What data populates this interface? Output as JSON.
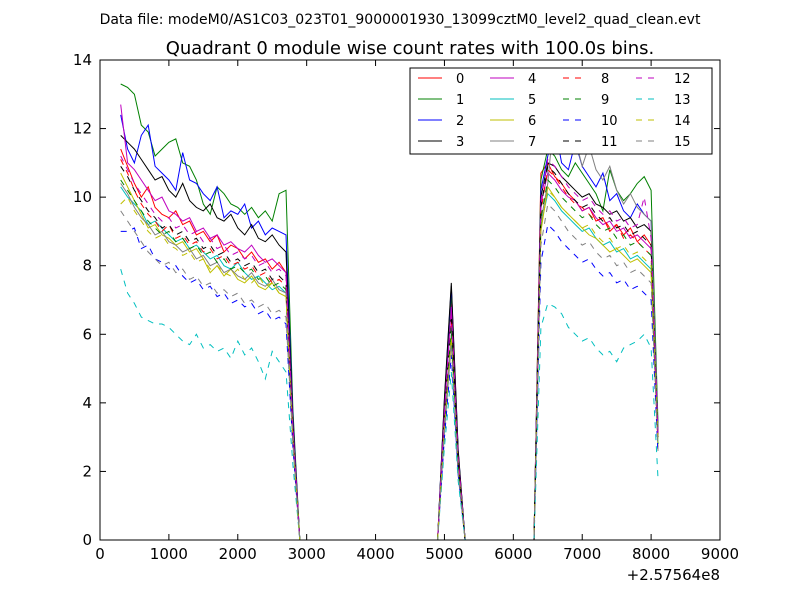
{
  "suptitle": "Data file: modeM0/AS1C03_023T01_9000001930_13099cztM0_level2_quad_clean.evt",
  "chart_data": {
    "type": "line",
    "title": "Quadrant 0 module wise count rates with 100.0s bins.",
    "xlabel": "",
    "ylabel": "",
    "x_offset_label": "+2.57564e8",
    "xlim": [
      0,
      9000
    ],
    "ylim": [
      0,
      14
    ],
    "xticks": [
      0,
      1000,
      2000,
      3000,
      4000,
      5000,
      6000,
      7000,
      8000,
      9000
    ],
    "yticks": [
      0,
      2,
      4,
      6,
      8,
      10,
      12,
      14
    ],
    "legend_position": "top-right",
    "legend_columns": 4,
    "seg1_x": [
      300,
      400,
      500,
      600,
      700,
      800,
      900,
      1000,
      1100,
      1200,
      1300,
      1400,
      1500,
      1600,
      1700,
      1800,
      1900,
      2000,
      2100,
      2200,
      2300,
      2400,
      2500,
      2600,
      2700,
      2800,
      2900
    ],
    "seg2_x": [
      4900,
      5000,
      5100,
      5200,
      5300
    ],
    "seg3_x": [
      6400,
      6500,
      6600,
      6700,
      6800,
      6900,
      7000,
      7100,
      7200,
      7300,
      7400,
      7500,
      7600,
      7700,
      7800,
      7900,
      8000,
      8100
    ],
    "series": [
      {
        "name": "0",
        "color": "#ff0000",
        "dash": false,
        "seg1": [
          11.4,
          10.9,
          10.4,
          10.0,
          10.3,
          9.7,
          9.5,
          9.4,
          9.6,
          9.2,
          9.3,
          8.9,
          9.0,
          8.7,
          8.9,
          8.4,
          8.6,
          8.5,
          8.2,
          8.4,
          8.1,
          8.2,
          7.9,
          8.1,
          7.8,
          3.3,
          0.0
        ],
        "peak": 7.0,
        "seg3": [
          10.7,
          11.0,
          10.6,
          10.4,
          10.1,
          9.9,
          9.6,
          9.7,
          9.3,
          9.4,
          9.0,
          9.2,
          8.9,
          9.1,
          8.7,
          8.9,
          8.6,
          3.0
        ]
      },
      {
        "name": "1",
        "color": "#008000",
        "dash": false,
        "seg1": [
          13.3,
          13.2,
          13.0,
          12.1,
          11.9,
          11.2,
          11.4,
          11.6,
          11.7,
          11.0,
          10.9,
          10.5,
          9.8,
          9.5,
          10.3,
          10.1,
          9.8,
          9.7,
          9.5,
          9.7,
          9.4,
          9.6,
          9.3,
          10.1,
          10.2,
          3.8,
          0.0
        ],
        "peak": 7.2,
        "seg3": [
          10.5,
          11.4,
          11.2,
          10.8,
          10.6,
          11.0,
          10.7,
          10.4,
          10.1,
          9.6,
          10.8,
          10.2,
          9.9,
          10.1,
          10.4,
          10.6,
          10.2,
          3.4
        ]
      },
      {
        "name": "2",
        "color": "#0000ff",
        "dash": false,
        "seg1": [
          12.4,
          11.4,
          11.0,
          11.8,
          12.1,
          10.9,
          10.7,
          10.5,
          10.2,
          11.3,
          10.5,
          10.4,
          10.1,
          9.9,
          10.3,
          9.4,
          9.6,
          9.5,
          9.8,
          9.1,
          9.3,
          8.9,
          9.1,
          9.0,
          8.9,
          3.6,
          0.0
        ],
        "peak": 7.4,
        "seg3": [
          10.2,
          11.2,
          12.1,
          11.0,
          10.8,
          11.6,
          10.9,
          10.6,
          10.3,
          10.7,
          9.9,
          10.1,
          9.6,
          9.4,
          9.8,
          9.5,
          9.3,
          3.2
        ]
      },
      {
        "name": "3",
        "color": "#000000",
        "dash": false,
        "seg1": [
          11.8,
          11.6,
          11.4,
          11.1,
          10.8,
          10.5,
          10.6,
          10.2,
          10.0,
          10.4,
          9.9,
          9.7,
          9.6,
          9.8,
          9.4,
          9.3,
          9.5,
          9.1,
          8.9,
          9.2,
          8.8,
          8.7,
          8.9,
          8.6,
          8.4,
          3.5,
          0.0
        ],
        "peak": 7.5,
        "seg3": [
          10.0,
          11.0,
          10.9,
          10.6,
          10.4,
          10.2,
          10.0,
          10.1,
          9.8,
          9.7,
          9.5,
          9.6,
          9.3,
          9.4,
          9.1,
          9.2,
          9.0,
          3.1
        ]
      },
      {
        "name": "4",
        "color": "#bf00bf",
        "dash": false,
        "seg1": [
          12.7,
          11.0,
          10.8,
          10.5,
          10.2,
          9.9,
          10.0,
          9.6,
          9.5,
          9.3,
          9.4,
          9.0,
          9.1,
          8.8,
          8.9,
          8.6,
          8.7,
          8.5,
          8.4,
          8.6,
          8.3,
          8.1,
          8.2,
          8.0,
          7.8,
          3.3,
          0.0
        ],
        "peak": 6.8,
        "seg3": [
          9.8,
          10.7,
          10.5,
          10.2,
          10.0,
          9.9,
          9.6,
          9.7,
          9.4,
          9.2,
          9.3,
          9.0,
          9.1,
          8.8,
          8.9,
          8.7,
          8.5,
          3.0
        ]
      },
      {
        "name": "5",
        "color": "#00bfbf",
        "dash": false,
        "seg1": [
          10.3,
          10.0,
          9.8,
          9.6,
          9.2,
          9.3,
          9.1,
          8.9,
          8.7,
          8.8,
          8.5,
          8.6,
          8.4,
          8.2,
          8.3,
          8.0,
          7.9,
          8.1,
          7.8,
          7.6,
          7.7,
          7.5,
          7.3,
          7.4,
          7.2,
          3.0,
          0.0
        ],
        "peak": 6.0,
        "seg3": [
          9.2,
          10.1,
          9.9,
          9.6,
          9.4,
          9.2,
          9.0,
          9.1,
          8.8,
          8.6,
          8.7,
          8.4,
          8.5,
          8.2,
          8.3,
          8.1,
          7.9,
          2.8
        ]
      },
      {
        "name": "6",
        "color": "#bfbf00",
        "dash": false,
        "seg1": [
          10.7,
          10.3,
          9.9,
          9.5,
          9.1,
          9.2,
          8.9,
          8.8,
          8.6,
          8.7,
          8.4,
          8.5,
          8.2,
          7.8,
          8.0,
          7.7,
          7.9,
          7.6,
          7.5,
          7.7,
          7.4,
          7.3,
          7.5,
          7.2,
          7.1,
          2.9,
          0.0
        ],
        "peak": 5.8,
        "seg3": [
          9.0,
          10.3,
          10.0,
          9.7,
          9.5,
          9.3,
          9.1,
          8.9,
          8.8,
          8.6,
          8.4,
          8.5,
          8.3,
          8.1,
          8.2,
          8.0,
          7.8,
          2.7
        ]
      },
      {
        "name": "7",
        "color": "#808080",
        "dash": false,
        "seg1": [
          10.4,
          10.1,
          9.7,
          9.4,
          9.2,
          8.9,
          9.0,
          8.7,
          8.6,
          8.4,
          8.5,
          8.2,
          8.3,
          8.0,
          8.1,
          7.8,
          7.9,
          7.7,
          7.6,
          7.8,
          7.5,
          7.4,
          7.6,
          7.3,
          7.2,
          3.0,
          0.0
        ],
        "peak": 6.0,
        "seg3": [
          9.3,
          10.4,
          12.6,
          11.9,
          12.0,
          11.7,
          10.9,
          11.5,
          10.8,
          10.5,
          10.9,
          10.2,
          9.8,
          10.1,
          9.7,
          9.5,
          9.3,
          3.2
        ]
      },
      {
        "name": "8",
        "color": "#ff0000",
        "dash": true,
        "seg1": [
          11.1,
          10.7,
          10.2,
          9.8,
          9.5,
          9.3,
          9.0,
          9.2,
          8.8,
          8.9,
          8.6,
          8.7,
          8.4,
          8.5,
          8.2,
          8.3,
          8.0,
          8.1,
          7.9,
          8.0,
          7.7,
          7.8,
          7.5,
          7.6,
          7.4,
          3.1,
          0.0
        ],
        "peak": 6.4,
        "seg3": [
          9.6,
          10.8,
          10.6,
          10.3,
          10.0,
          9.8,
          9.7,
          9.5,
          9.3,
          9.4,
          9.1,
          9.2,
          8.8,
          8.9,
          8.7,
          8.5,
          8.3,
          2.9
        ]
      },
      {
        "name": "9",
        "color": "#008000",
        "dash": true,
        "seg1": [
          10.5,
          10.2,
          9.9,
          9.6,
          9.3,
          9.1,
          8.9,
          9.0,
          8.7,
          8.8,
          8.5,
          8.6,
          8.3,
          8.4,
          8.1,
          8.2,
          7.9,
          8.0,
          7.8,
          7.9,
          7.6,
          7.7,
          7.4,
          7.5,
          7.3,
          3.0,
          0.0
        ],
        "peak": 6.2,
        "seg3": [
          9.4,
          10.5,
          10.3,
          10.0,
          9.8,
          9.6,
          9.4,
          9.5,
          9.2,
          9.0,
          9.1,
          8.8,
          8.9,
          8.6,
          8.7,
          8.5,
          8.3,
          2.8
        ]
      },
      {
        "name": "10",
        "color": "#0000ff",
        "dash": true,
        "seg1": [
          9.0,
          9.0,
          9.1,
          8.5,
          8.6,
          8.2,
          8.1,
          7.9,
          8.0,
          7.7,
          7.5,
          7.6,
          7.3,
          7.4,
          7.1,
          7.2,
          6.9,
          7.0,
          6.8,
          6.9,
          6.6,
          6.7,
          6.4,
          6.5,
          6.3,
          2.7,
          0.0
        ],
        "peak": 5.4,
        "seg3": [
          8.1,
          9.2,
          9.0,
          8.7,
          8.5,
          8.3,
          8.1,
          8.2,
          7.9,
          7.7,
          7.8,
          7.5,
          7.6,
          7.3,
          7.4,
          7.2,
          7.0,
          2.5
        ]
      },
      {
        "name": "11",
        "color": "#000000",
        "dash": true,
        "seg1": [
          10.9,
          10.6,
          10.2,
          9.9,
          9.6,
          9.4,
          9.1,
          9.2,
          8.9,
          9.0,
          8.7,
          8.8,
          8.5,
          8.6,
          8.3,
          8.4,
          8.1,
          8.2,
          8.0,
          8.1,
          7.8,
          7.9,
          7.6,
          7.7,
          7.5,
          3.1,
          0.0
        ],
        "peak": 6.6,
        "seg3": [
          9.7,
          10.9,
          10.7,
          10.4,
          10.1,
          9.9,
          9.7,
          9.8,
          9.5,
          9.3,
          9.4,
          9.1,
          9.2,
          8.9,
          9.0,
          8.8,
          8.6,
          3.0
        ]
      },
      {
        "name": "12",
        "color": "#bf00bf",
        "dash": true,
        "seg1": [
          11.2,
          10.8,
          10.4,
          10.1,
          9.8,
          9.5,
          9.3,
          9.4,
          9.1,
          9.2,
          8.9,
          9.0,
          8.7,
          8.8,
          8.5,
          8.6,
          8.3,
          8.4,
          8.2,
          8.3,
          8.0,
          8.1,
          7.8,
          7.9,
          7.7,
          3.2,
          0.0
        ],
        "peak": 6.7,
        "seg3": [
          9.9,
          11.1,
          10.9,
          10.6,
          10.3,
          10.1,
          9.9,
          10.0,
          9.7,
          9.5,
          9.6,
          9.3,
          9.4,
          9.1,
          9.2,
          10.0,
          8.8,
          3.0
        ]
      },
      {
        "name": "13",
        "color": "#00bfbf",
        "dash": true,
        "seg1": [
          7.9,
          7.2,
          6.9,
          6.5,
          6.4,
          6.3,
          6.3,
          6.2,
          6.0,
          5.8,
          5.7,
          6.0,
          5.6,
          5.7,
          5.5,
          5.6,
          5.3,
          5.8,
          5.4,
          5.6,
          5.2,
          4.7,
          5.5,
          5.2,
          4.9,
          2.2,
          0.0
        ],
        "peak": 4.9,
        "seg3": [
          6.2,
          6.9,
          6.8,
          6.6,
          6.2,
          6.0,
          5.8,
          5.9,
          5.6,
          5.4,
          5.5,
          5.2,
          5.6,
          5.7,
          5.8,
          6.0,
          5.6,
          1.8
        ]
      },
      {
        "name": "14",
        "color": "#bfbf00",
        "dash": true,
        "seg1": [
          9.8,
          10.0,
          9.6,
          9.3,
          9.0,
          8.8,
          8.9,
          8.6,
          8.5,
          8.3,
          8.4,
          8.1,
          8.2,
          7.9,
          8.0,
          7.8,
          7.7,
          7.9,
          7.6,
          7.5,
          7.7,
          7.4,
          7.5,
          7.2,
          7.1,
          2.9,
          0.0
        ],
        "peak": 5.9,
        "seg3": [
          9.1,
          10.2,
          10.0,
          9.7,
          9.5,
          9.3,
          9.1,
          9.2,
          8.9,
          8.7,
          8.8,
          8.5,
          8.6,
          8.3,
          8.4,
          8.2,
          8.0,
          2.8
        ]
      },
      {
        "name": "15",
        "color": "#808080",
        "dash": true,
        "seg1": [
          9.6,
          9.3,
          9.0,
          8.7,
          8.4,
          8.2,
          8.0,
          8.1,
          7.8,
          7.9,
          7.6,
          7.7,
          7.4,
          7.5,
          7.2,
          7.3,
          7.1,
          7.2,
          6.9,
          7.0,
          6.8,
          6.9,
          6.6,
          6.7,
          6.5,
          2.8,
          0.0
        ],
        "peak": 5.7,
        "seg3": [
          8.6,
          9.8,
          9.6,
          9.3,
          9.0,
          8.8,
          8.6,
          8.7,
          8.4,
          8.2,
          8.3,
          8.0,
          8.1,
          7.8,
          7.9,
          7.7,
          7.5,
          2.6
        ]
      }
    ]
  }
}
